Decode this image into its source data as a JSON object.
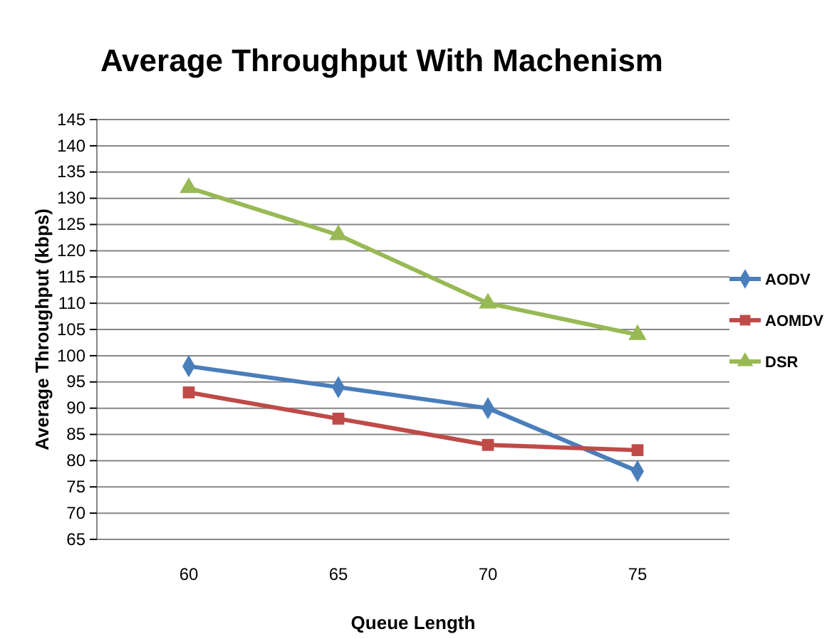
{
  "chart_data": {
    "type": "line",
    "title": "Average Throughput With Machenism",
    "xlabel": "Queue Length",
    "ylabel": "Average Throughput (kbps)",
    "categories": [
      "60",
      "65",
      "70",
      "75"
    ],
    "series": [
      {
        "name": "AODV",
        "color": "#4a7ebb",
        "marker": "diamond",
        "values": [
          98,
          94,
          90,
          78
        ]
      },
      {
        "name": "AOMDV",
        "color": "#be4b48",
        "marker": "square",
        "values": [
          93,
          88,
          83,
          82
        ]
      },
      {
        "name": "DSR",
        "color": "#98b954",
        "marker": "triangle",
        "values": [
          132,
          123,
          110,
          104
        ]
      }
    ],
    "ylim": [
      65,
      145
    ],
    "yticks": [
      65,
      70,
      75,
      80,
      85,
      90,
      95,
      100,
      105,
      110,
      115,
      120,
      125,
      130,
      135,
      140,
      145
    ],
    "grid": "y",
    "legend": "right"
  }
}
